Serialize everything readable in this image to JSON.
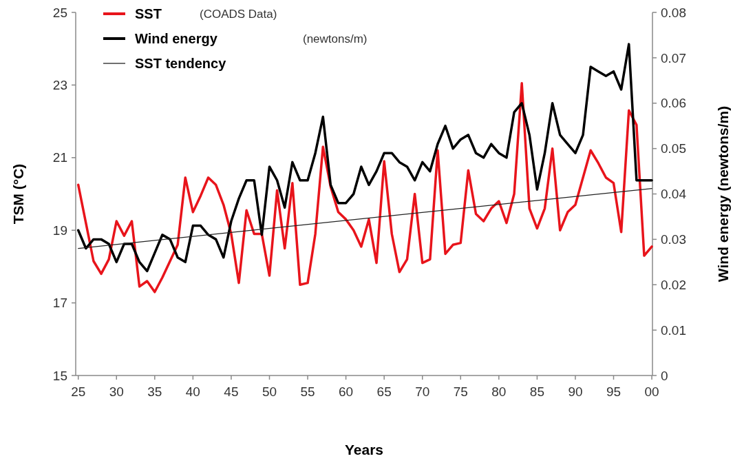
{
  "chart_data": {
    "type": "line",
    "xlabel": "Years",
    "ylabel": "TSM (°C)",
    "y2label": "Wind energy (newtons/m)",
    "x": [
      "1925",
      "1926",
      "1927",
      "1928",
      "1929",
      "1930",
      "1931",
      "1932",
      "1933",
      "1934",
      "1935",
      "1936",
      "1937",
      "1938",
      "1939",
      "1940",
      "1941",
      "1942",
      "1943",
      "1944",
      "1945",
      "1946",
      "1947",
      "1948",
      "1949",
      "1950",
      "1951",
      "1952",
      "1953",
      "1954",
      "1955",
      "1956",
      "1957",
      "1958",
      "1959",
      "1960",
      "1961",
      "1962",
      "1963",
      "1964",
      "1965",
      "1966",
      "1967",
      "1968",
      "1969",
      "1970",
      "1971",
      "1972",
      "1973",
      "1974",
      "1975",
      "1976",
      "1977",
      "1978",
      "1979",
      "1980",
      "1981",
      "1982",
      "1983",
      "1984",
      "1985",
      "1986",
      "1987",
      "1988",
      "1989",
      "1990",
      "1991",
      "1992",
      "1993",
      "1994",
      "1995",
      "1996",
      "1997",
      "1998",
      "1999",
      "2000"
    ],
    "series": [
      {
        "name": "SST",
        "color": "#e8141b",
        "values": [
          20.25,
          19.2,
          18.15,
          17.8,
          18.2,
          19.25,
          18.85,
          19.25,
          17.45,
          17.6,
          17.3,
          17.7,
          18.15,
          18.6,
          20.45,
          19.5,
          19.95,
          20.45,
          20.25,
          19.7,
          18.9,
          17.55,
          19.55,
          18.9,
          18.9,
          17.75,
          20.1,
          18.5,
          20.3,
          17.5,
          17.55,
          18.9,
          21.3,
          20.2,
          19.5,
          19.3,
          19.0,
          18.55,
          19.3,
          18.1,
          20.9,
          18.9,
          17.85,
          18.2,
          20.0,
          18.1,
          18.2,
          21.2,
          18.35,
          18.6,
          18.65,
          20.65,
          19.45,
          19.25,
          19.6,
          19.8,
          19.2,
          20.0,
          23.05,
          19.6,
          19.05,
          19.6,
          21.25,
          19.0,
          19.5,
          19.7,
          20.45,
          21.2,
          20.85,
          20.45,
          20.3,
          18.95,
          22.3,
          21.9,
          18.3,
          18.55
        ]
      },
      {
        "name": "Wind energy",
        "color": "#000000",
        "axis": "y2",
        "values": [
          0.032,
          0.028,
          0.03,
          0.03,
          0.029,
          0.025,
          0.029,
          0.029,
          0.025,
          0.023,
          0.027,
          0.031,
          0.03,
          0.026,
          0.025,
          0.033,
          0.033,
          0.031,
          0.03,
          0.026,
          0.034,
          0.039,
          0.043,
          0.043,
          0.031,
          0.046,
          0.043,
          0.037,
          0.047,
          0.043,
          0.043,
          0.049,
          0.057,
          0.042,
          0.038,
          0.038,
          0.04,
          0.046,
          0.042,
          0.045,
          0.049,
          0.049,
          0.047,
          0.046,
          0.043,
          0.047,
          0.045,
          0.051,
          0.055,
          0.05,
          0.052,
          0.053,
          0.049,
          0.048,
          0.051,
          0.049,
          0.048,
          0.058,
          0.06,
          0.053,
          0.041,
          0.049,
          0.06,
          0.053,
          0.051,
          0.049,
          0.053,
          0.068,
          0.067,
          0.066,
          0.067,
          0.063,
          0.073,
          0.043,
          0.043,
          0.043
        ]
      },
      {
        "name": "SST tendency",
        "color": "#222222",
        "x": [
          "1925",
          "2000"
        ],
        "values": [
          18.5,
          20.15
        ]
      }
    ],
    "xlim": [
      "1924-09",
      "2000-02"
    ],
    "xticks": [
      {
        "value": "1925",
        "label": "25"
      },
      {
        "value": "1930",
        "label": "30"
      },
      {
        "value": "1935",
        "label": "35"
      },
      {
        "value": "1940",
        "label": "40"
      },
      {
        "value": "1945",
        "label": "45"
      },
      {
        "value": "1950",
        "label": "50"
      },
      {
        "value": "1955",
        "label": "55"
      },
      {
        "value": "1960",
        "label": "60"
      },
      {
        "value": "1965",
        "label": "65"
      },
      {
        "value": "1970",
        "label": "70"
      },
      {
        "value": "1975",
        "label": "75"
      },
      {
        "value": "1980",
        "label": "80"
      },
      {
        "value": "1985",
        "label": "85"
      },
      {
        "value": "1990",
        "label": "90"
      },
      {
        "value": "1995",
        "label": "95"
      },
      {
        "value": "2000",
        "label": "00"
      }
    ],
    "ylim": [
      15,
      25
    ],
    "yticks": [
      15,
      17,
      19,
      21,
      23,
      25
    ],
    "y2lim": [
      0,
      0.08
    ],
    "y2ticks": [
      0,
      0.01,
      0.02,
      0.03,
      0.04,
      0.05,
      0.06,
      0.07,
      0.08
    ],
    "annotations": [
      "(COADS Data)",
      "(newtons/m)"
    ],
    "legend": "top left",
    "grid": false,
    "marker": "none",
    "line_style": "solid"
  }
}
